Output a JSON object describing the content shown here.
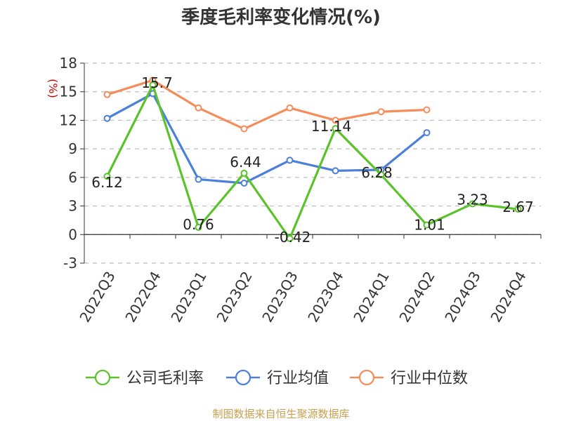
{
  "chart_data": {
    "type": "line",
    "title": "季度毛利率变化情况(%)",
    "ylabel": "(%)",
    "ylim": [
      -3,
      18
    ],
    "yticks": [
      -3,
      0,
      3,
      6,
      9,
      12,
      15,
      18
    ],
    "categories": [
      "2022Q3",
      "2022Q4",
      "2023Q1",
      "2023Q2",
      "2023Q3",
      "2023Q4",
      "2024Q1",
      "2024Q2",
      "2024Q3",
      "2024Q4"
    ],
    "grid": true,
    "legend_position": "bottom",
    "series": [
      {
        "name": "公司毛利率",
        "color": "#5bc32a",
        "values": [
          6.12,
          15.7,
          0.76,
          6.44,
          -0.42,
          11.14,
          6.28,
          1.01,
          3.23,
          2.67
        ],
        "data_labels": [
          "6.12",
          "15.7",
          "0.76",
          "6.44",
          "-0.42",
          "11.14",
          "6.28",
          "1.01",
          "3.23",
          "2.67"
        ]
      },
      {
        "name": "行业均值",
        "color": "#4a7fdb",
        "values": [
          12.2,
          14.8,
          5.8,
          5.4,
          7.8,
          6.7,
          6.8,
          10.7,
          null,
          null
        ]
      },
      {
        "name": "行业中位数",
        "color": "#f58c5a",
        "values": [
          14.7,
          16.2,
          13.3,
          11.1,
          13.3,
          12.0,
          12.9,
          13.1,
          null,
          null
        ]
      }
    ]
  },
  "footer": {
    "source": "制图数据来自恒生聚源数据库"
  }
}
